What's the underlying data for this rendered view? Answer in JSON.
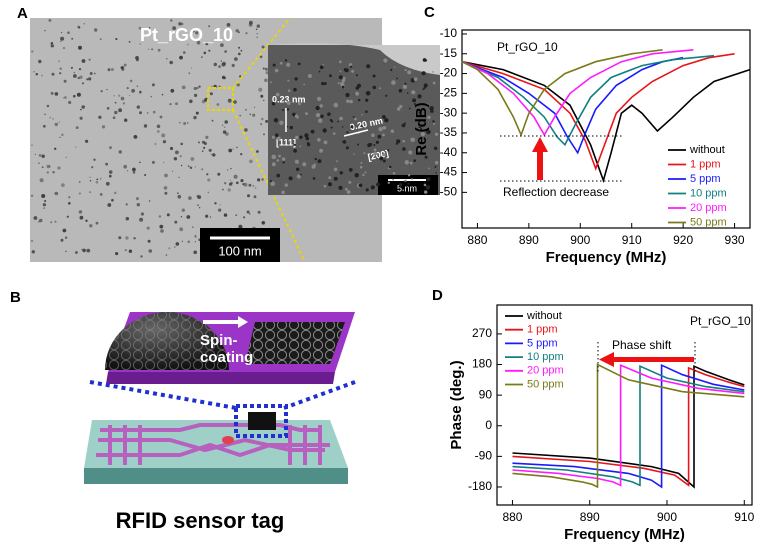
{
  "panel_labels": [
    "A",
    "B",
    "C",
    "D"
  ],
  "panel_a": {
    "sample": "Pt_rGO_10",
    "scale_bar": "100 nm",
    "inset": {
      "d111": "0.23 nm",
      "plane111": "[111]",
      "d200": "0.20 nm",
      "plane200": "[200]",
      "scale_bar": "5 nm"
    }
  },
  "panel_b": {
    "process_lines": [
      "Spin-",
      "coating"
    ],
    "caption": "RFID sensor tag"
  },
  "chart_data": [
    {
      "type": "line",
      "sample": "Pt_rGO_10",
      "xlabel": "Frequency (MHz)",
      "ylabel": "Re (dB)",
      "annotation": "Reflection decrease",
      "legend": "lower right",
      "xlim": [
        877,
        933
      ],
      "ylim": [
        -59,
        -9
      ],
      "xticks": [
        880,
        890,
        900,
        910,
        920,
        930
      ],
      "yticks": [
        -10,
        -15,
        -20,
        -25,
        -30,
        -35,
        -40,
        -45,
        -50
      ],
      "series": [
        {
          "name": "without",
          "color": "#000000",
          "x": [
            877,
            885,
            893,
            898,
            902,
            904.5,
            906,
            908,
            910,
            912,
            915,
            918,
            922,
            926,
            933
          ],
          "values": [
            -17,
            -19,
            -23,
            -28,
            -38,
            -47,
            -40,
            -30,
            -28,
            -30,
            -34.5,
            -31,
            -26,
            -22,
            -19
          ]
        },
        {
          "name": "1 ppm",
          "color": "#e8141b",
          "x": [
            877,
            885,
            893,
            898,
            901,
            903,
            905,
            907,
            910,
            914,
            920,
            925,
            930
          ],
          "values": [
            -17,
            -20,
            -24,
            -30,
            -37,
            -44,
            -37,
            -30,
            -26,
            -22,
            -18,
            -16,
            -15
          ]
        },
        {
          "name": "5 ppm",
          "color": "#1a1aff",
          "x": [
            877,
            885,
            890,
            895,
            897.5,
            899.5,
            901,
            903,
            907,
            912,
            916,
            920
          ],
          "values": [
            -17,
            -21,
            -25,
            -30,
            -36,
            -40,
            -35,
            -29,
            -23,
            -19,
            -17,
            -16
          ]
        },
        {
          "name": "10 ppm",
          "color": "#108080",
          "x": [
            877,
            884,
            889,
            893,
            895.5,
            897,
            899,
            902,
            906,
            912,
            918,
            926
          ],
          "values": [
            -17,
            -21,
            -26,
            -31,
            -36,
            -38,
            -33,
            -26,
            -21,
            -18,
            -16.5,
            -15.5
          ]
        },
        {
          "name": "20 ppm",
          "color": "#ff1aff",
          "x": [
            877,
            882,
            887,
            891,
            893,
            895,
            898,
            902,
            908,
            914,
            922
          ],
          "values": [
            -17,
            -20,
            -25,
            -31,
            -35.5,
            -31,
            -25,
            -21,
            -17,
            -15,
            -14
          ]
        },
        {
          "name": "50 ppm",
          "color": "#7a7a1a",
          "x": [
            877,
            880,
            884,
            887,
            888.5,
            890,
            893,
            897,
            903,
            910,
            916
          ],
          "values": [
            -17,
            -19,
            -24,
            -31,
            -35.5,
            -30,
            -24,
            -20,
            -17,
            -15,
            -14
          ]
        }
      ]
    },
    {
      "type": "line",
      "sample": "Pt_rGO_10",
      "xlabel": "Frequency (MHz)",
      "ylabel": "Phase (deg.)",
      "annotation": "Phase shift",
      "legend": "upper left",
      "xlim": [
        878,
        911
      ],
      "ylim": [
        -233,
        355
      ],
      "xticks": [
        880,
        890,
        900,
        910
      ],
      "yticks": [
        -180,
        -90,
        0,
        90,
        180,
        270
      ],
      "series": [
        {
          "name": "without",
          "color": "#000000",
          "x": [
            880,
            890,
            898,
            901.5,
            903.5,
            903.5,
            905,
            908,
            910
          ],
          "values": [
            -80,
            -95,
            -120,
            -140,
            -180,
            175,
            160,
            135,
            120
          ]
        },
        {
          "name": "1 ppm",
          "color": "#e8141b",
          "x": [
            880,
            890,
            897,
            901,
            902.8,
            902.8,
            905,
            908,
            910
          ],
          "values": [
            -90,
            -105,
            -125,
            -145,
            -175,
            170,
            150,
            128,
            115
          ]
        },
        {
          "name": "5 ppm",
          "color": "#1a1aff",
          "x": [
            880,
            888,
            895,
            898,
            899.3,
            899.3,
            902,
            906,
            910
          ],
          "values": [
            -110,
            -120,
            -140,
            -160,
            -180,
            178,
            150,
            122,
            105
          ]
        },
        {
          "name": "10 ppm",
          "color": "#108080",
          "x": [
            880,
            887,
            893,
            895.5,
            896.5,
            896.5,
            900,
            905,
            910
          ],
          "values": [
            -120,
            -130,
            -150,
            -165,
            -175,
            175,
            140,
            115,
            100
          ]
        },
        {
          "name": "20 ppm",
          "color": "#ff1aff",
          "x": [
            880,
            886,
            891,
            893,
            894,
            894,
            898,
            904,
            910
          ],
          "values": [
            -130,
            -140,
            -155,
            -165,
            -175,
            178,
            140,
            110,
            95
          ]
        },
        {
          "name": "50 ppm",
          "color": "#7a7a1a",
          "x": [
            880,
            885,
            889,
            890.3,
            891,
            891,
            895,
            902,
            910
          ],
          "values": [
            -140,
            -150,
            -165,
            -172,
            -180,
            180,
            135,
            100,
            85
          ]
        }
      ]
    }
  ]
}
